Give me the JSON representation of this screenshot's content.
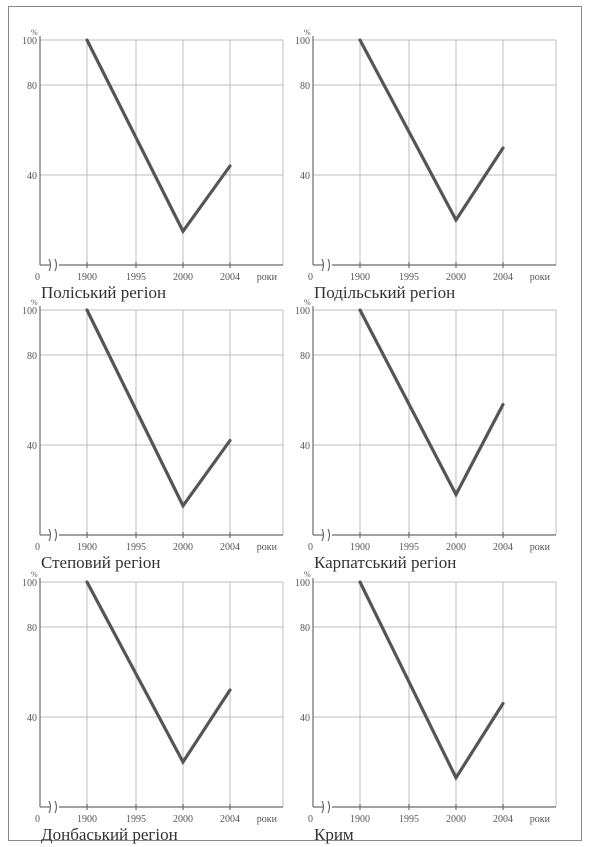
{
  "chart_data": [
    {
      "type": "line",
      "title": "Поліський регіон",
      "categories": [
        "1900",
        "1995",
        "2000",
        "2004"
      ],
      "x_axis_zero_label": "0",
      "xlabel": "роки",
      "ylabel": "%",
      "y_tick_labels": [
        "100",
        "80",
        "40"
      ],
      "ylim": [
        0,
        100
      ],
      "grid": true,
      "series": [
        {
          "values": [
            100,
            null,
            15,
            44
          ]
        }
      ]
    },
    {
      "type": "line",
      "title": "Подільський регіон",
      "categories": [
        "1900",
        "1995",
        "2000",
        "2004"
      ],
      "x_axis_zero_label": "0",
      "xlabel": "роки",
      "ylabel": "%",
      "y_tick_labels": [
        "100",
        "80",
        "40"
      ],
      "ylim": [
        0,
        100
      ],
      "grid": true,
      "series": [
        {
          "values": [
            100,
            null,
            20,
            52
          ]
        }
      ]
    },
    {
      "type": "line",
      "title": "Степовий регіон",
      "categories": [
        "1900",
        "1995",
        "2000",
        "2004"
      ],
      "x_axis_zero_label": "0",
      "xlabel": "роки",
      "ylabel": "%",
      "y_tick_labels": [
        "100",
        "80",
        "40"
      ],
      "ylim": [
        0,
        100
      ],
      "grid": true,
      "series": [
        {
          "values": [
            100,
            null,
            13,
            42
          ]
        }
      ]
    },
    {
      "type": "line",
      "title": "Карпатський регіон",
      "categories": [
        "1900",
        "1995",
        "2000",
        "2004"
      ],
      "x_axis_zero_label": "0",
      "xlabel": "роки",
      "ylabel": "%",
      "y_tick_labels": [
        "100",
        "80",
        "40"
      ],
      "ylim": [
        0,
        100
      ],
      "grid": true,
      "series": [
        {
          "values": [
            100,
            null,
            18,
            58
          ]
        }
      ]
    },
    {
      "type": "line",
      "title": "Донбаський регіон",
      "categories": [
        "1900",
        "1995",
        "2000",
        "2004"
      ],
      "x_axis_zero_label": "0",
      "xlabel": "роки",
      "ylabel": "%",
      "y_tick_labels": [
        "100",
        "80",
        "40"
      ],
      "ylim": [
        0,
        100
      ],
      "grid": true,
      "series": [
        {
          "values": [
            100,
            null,
            20,
            52
          ]
        }
      ]
    },
    {
      "type": "line",
      "title": "Крим",
      "categories": [
        "1900",
        "1995",
        "2000",
        "2004"
      ],
      "x_axis_zero_label": "0",
      "xlabel": "роки",
      "ylabel": "%",
      "y_tick_labels": [
        "100",
        "80",
        "40"
      ],
      "ylim": [
        0,
        100
      ],
      "grid": true,
      "series": [
        {
          "values": [
            100,
            null,
            13,
            46
          ]
        }
      ]
    }
  ]
}
